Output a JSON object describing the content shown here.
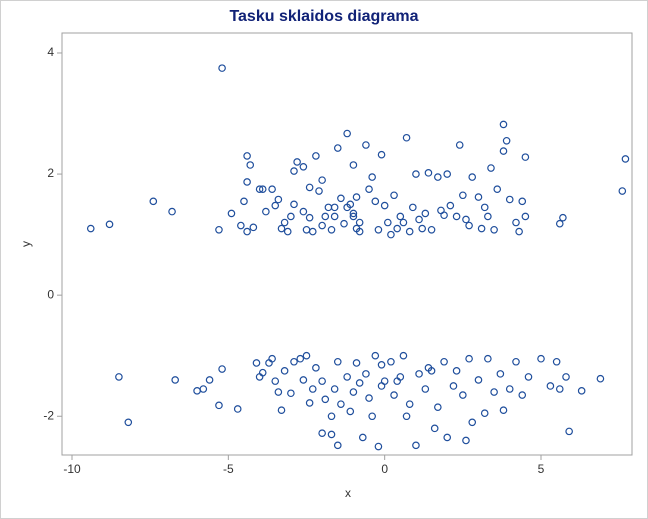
{
  "chart_data": {
    "type": "scatter",
    "title": "Tasku sklaidos diagrama",
    "x_label": "x",
    "y_label": "y",
    "color": "#1f4e9c",
    "grid": false,
    "xlim": [
      -10.32,
      7.91
    ],
    "ylim": [
      -2.64,
      4.33
    ],
    "xticks": [
      -10,
      -5,
      0,
      5
    ],
    "yticks": [
      -2,
      0,
      2,
      4
    ],
    "x": [
      -9.4,
      -8.8,
      -7.4,
      -6.8,
      -5.2,
      -5.3,
      -4.9,
      -4.6,
      -4.5,
      -4.4,
      -4.4,
      -4.3,
      -4.4,
      -4.2,
      -4.0,
      -3.9,
      -3.8,
      -3.6,
      -3.5,
      -3.4,
      -3.3,
      -3.2,
      -3.0,
      -2.9,
      -2.9,
      -2.8,
      -2.6,
      -2.6,
      -2.5,
      -2.4,
      -2.4,
      -2.3,
      -2.2,
      -2.1,
      -2.0,
      -1.9,
      -1.8,
      -1.7,
      -1.6,
      -1.5,
      -1.4,
      -1.3,
      -1.2,
      -1.1,
      -1.0,
      -1.0,
      -0.9,
      -0.9,
      -0.8,
      -0.6,
      -0.5,
      -0.4,
      -0.3,
      -0.2,
      -0.1,
      0.0,
      0.1,
      0.3,
      0.4,
      0.5,
      0.7,
      0.8,
      0.9,
      1.0,
      1.1,
      1.3,
      1.4,
      1.5,
      1.7,
      1.9,
      2.0,
      2.1,
      2.3,
      2.4,
      2.5,
      2.7,
      2.8,
      3.0,
      3.1,
      3.3,
      3.4,
      3.5,
      3.6,
      3.8,
      3.9,
      3.8,
      4.0,
      4.2,
      4.3,
      4.4,
      4.5,
      4.5,
      5.6,
      5.7,
      7.6,
      7.7,
      -1.0,
      -1.2,
      -0.8,
      0.2,
      -2.0,
      1.2,
      2.6,
      3.2,
      -3.1,
      -1.6,
      0.6,
      1.8,
      -8.5,
      -8.2,
      -6.7,
      -6.0,
      -5.8,
      -5.6,
      -5.3,
      -5.2,
      -4.7,
      -4.1,
      -4.0,
      -3.9,
      -3.7,
      -3.6,
      -3.5,
      -3.4,
      -3.2,
      -3.0,
      -2.9,
      -2.7,
      -2.6,
      -2.5,
      -2.4,
      -2.3,
      -2.2,
      -2.0,
      -2.0,
      -1.9,
      -1.7,
      -1.7,
      -1.6,
      -1.5,
      -1.5,
      -1.4,
      -1.2,
      -1.1,
      -1.0,
      -0.9,
      -0.8,
      -0.7,
      -0.6,
      -0.5,
      -0.4,
      -0.3,
      -0.2,
      -0.1,
      0.0,
      0.2,
      0.3,
      0.5,
      0.6,
      0.7,
      0.8,
      1.0,
      1.1,
      1.3,
      1.4,
      1.6,
      1.7,
      1.9,
      2.0,
      2.2,
      2.3,
      2.5,
      2.7,
      2.8,
      3.0,
      3.2,
      3.3,
      3.5,
      3.7,
      3.8,
      4.0,
      4.2,
      4.4,
      4.6,
      5.0,
      5.3,
      5.5,
      5.6,
      5.8,
      5.9,
      6.3,
      6.9,
      2.6,
      -0.1,
      1.5,
      -3.3,
      0.4
    ],
    "values": [
      1.1,
      1.17,
      1.55,
      1.38,
      3.75,
      1.08,
      1.35,
      1.15,
      1.55,
      1.87,
      2.3,
      2.15,
      1.05,
      1.12,
      1.75,
      1.75,
      1.38,
      1.75,
      1.48,
      1.58,
      1.1,
      1.2,
      1.3,
      1.5,
      2.05,
      2.2,
      1.38,
      2.12,
      1.08,
      1.28,
      1.78,
      1.05,
      2.3,
      1.72,
      1.9,
      1.3,
      1.45,
      1.08,
      1.3,
      2.43,
      1.6,
      1.18,
      2.67,
      1.5,
      1.35,
      2.15,
      1.1,
      1.62,
      1.2,
      2.48,
      1.75,
      1.95,
      1.55,
      1.08,
      2.32,
      1.48,
      1.2,
      1.65,
      1.1,
      1.3,
      2.6,
      1.05,
      1.45,
      2.0,
      1.25,
      1.35,
      2.02,
      1.08,
      1.95,
      1.32,
      2.0,
      1.48,
      1.3,
      2.48,
      1.65,
      1.15,
      1.95,
      1.62,
      1.1,
      1.3,
      2.1,
      1.08,
      1.75,
      2.82,
      2.55,
      2.38,
      1.58,
      1.2,
      1.05,
      1.55,
      2.28,
      1.3,
      1.18,
      1.28,
      1.72,
      2.25,
      1.3,
      1.45,
      1.05,
      1.0,
      1.15,
      1.1,
      1.25,
      1.45,
      1.05,
      1.45,
      1.2,
      1.4,
      -1.35,
      -2.1,
      -1.4,
      -1.58,
      -1.55,
      -1.4,
      -1.82,
      -1.22,
      -1.88,
      -1.12,
      -1.35,
      -1.28,
      -1.12,
      -1.05,
      -1.42,
      -1.6,
      -1.25,
      -1.62,
      -1.1,
      -1.05,
      -1.4,
      -1.0,
      -1.78,
      -1.55,
      -1.2,
      -1.42,
      -2.28,
      -1.72,
      -2.3,
      -2.0,
      -1.55,
      -1.1,
      -2.48,
      -1.8,
      -1.35,
      -1.92,
      -1.6,
      -1.12,
      -1.45,
      -2.35,
      -1.3,
      -1.7,
      -2.0,
      -1.0,
      -2.5,
      -1.5,
      -1.42,
      -1.1,
      -1.65,
      -1.35,
      -1.0,
      -2.0,
      -1.8,
      -2.48,
      -1.3,
      -1.55,
      -1.2,
      -2.2,
      -1.85,
      -1.1,
      -2.35,
      -1.5,
      -1.25,
      -1.65,
      -1.05,
      -2.1,
      -1.4,
      -1.95,
      -1.05,
      -1.6,
      -1.3,
      -1.9,
      -1.55,
      -1.1,
      -1.65,
      -1.35,
      -1.05,
      -1.5,
      -1.1,
      -1.55,
      -1.35,
      -2.25,
      -1.58,
      -1.38,
      -2.4,
      -1.15,
      -1.25,
      -1.9,
      -1.42
    ]
  }
}
